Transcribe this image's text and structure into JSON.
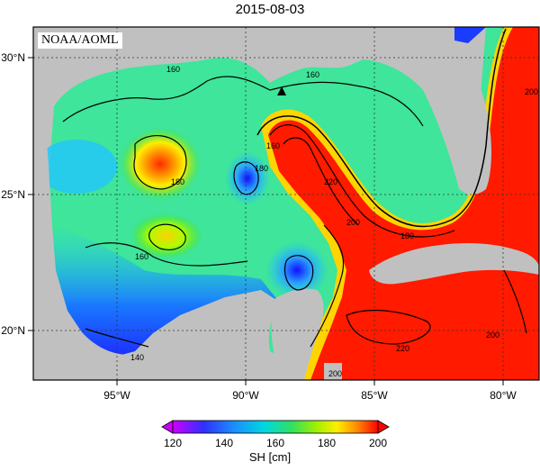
{
  "title": "2015-08-03",
  "credit": "NOAA/AOML",
  "colorbar": {
    "label": "SH [cm]",
    "ticks": [
      120,
      140,
      160,
      180,
      200
    ],
    "colors": [
      "#ff00ff",
      "#0000ff",
      "#00bfff",
      "#00e676",
      "#7cfc00",
      "#ffff00",
      "#ffa500",
      "#ff0000"
    ]
  },
  "axes": {
    "lat_ticks": [
      "30°N",
      "25°N",
      "20°N"
    ],
    "lon_ticks": [
      "95°W",
      "90°W",
      "85°W",
      "80°W"
    ]
  },
  "contour_labels": [
    "160",
    "160",
    "180",
    "180",
    "160",
    "220",
    "200",
    "180",
    "160",
    "200",
    "220",
    "200",
    "140",
    "200"
  ],
  "features": {
    "marker": "triangle-marker"
  }
}
